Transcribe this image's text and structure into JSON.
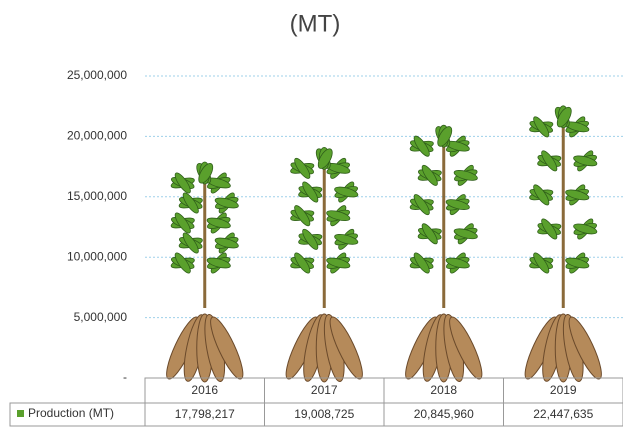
{
  "chart_data": {
    "type": "pictograph",
    "title": "(MT)",
    "categories": [
      "2016",
      "2017",
      "2018",
      "2019"
    ],
    "series": [
      {
        "name": "Production (MT)",
        "color": "#5aa02c",
        "values": [
          17798217,
          19008725,
          20845960,
          22447635
        ],
        "value_labels": [
          "17,798,217",
          "19,008,725",
          "20,845,960",
          "22,447,635"
        ]
      }
    ],
    "ylim": [
      0,
      25000000
    ],
    "yticks": [
      {
        "value": 0,
        "label": "-"
      },
      {
        "value": 5000000,
        "label": "5,000,000"
      },
      {
        "value": 10000000,
        "label": "10,000,000"
      },
      {
        "value": 15000000,
        "label": "15,000,000"
      },
      {
        "value": 20000000,
        "label": "20,000,000"
      },
      {
        "value": 25000000,
        "label": "25,000,000"
      }
    ],
    "grid": true
  }
}
